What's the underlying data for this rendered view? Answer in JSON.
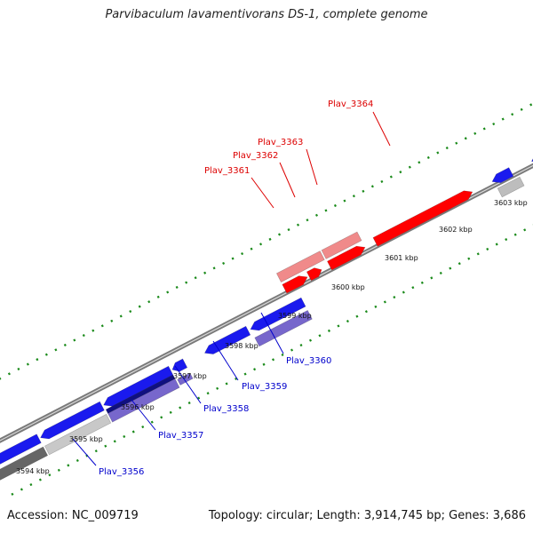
{
  "title": "Parvibaculum lavamentivorans DS-1, complete genome",
  "footer": {
    "accession": "Accession: NC_009719",
    "info": "Topology: circular; Length: 3,914,745 bp; Genes: 3,686"
  },
  "colors": {
    "forward_gene": "#ff0000",
    "forward_gene_light": "#f08a8a",
    "reverse_gene": "#1a1aee",
    "reverse_gene_light": "#7767cc",
    "backbone": "#888888",
    "tick_dots": "#1a8a1a",
    "label_red": "#dd0000",
    "label_blue": "#0000cc"
  },
  "ticks": [
    {
      "label": "3594 kbp"
    },
    {
      "label": "3595 kbp"
    },
    {
      "label": "3596 kbp"
    },
    {
      "label": "3597 kbp"
    },
    {
      "label": "3598 kbp"
    },
    {
      "label": "3599 kbp"
    },
    {
      "label": "3600 kbp"
    },
    {
      "label": "3601 kbp"
    },
    {
      "label": "3602 kbp"
    },
    {
      "label": "3603 kbp"
    }
  ],
  "gene_labels": [
    {
      "text": "Plav_3356",
      "strand": "reverse"
    },
    {
      "text": "Plav_3357",
      "strand": "reverse"
    },
    {
      "text": "Plav_3358",
      "strand": "reverse"
    },
    {
      "text": "Plav_3359",
      "strand": "reverse"
    },
    {
      "text": "Plav_3360",
      "strand": "reverse"
    },
    {
      "text": "Plav_3361",
      "strand": "forward"
    },
    {
      "text": "Plav_3362",
      "strand": "forward"
    },
    {
      "text": "Plav_3363",
      "strand": "forward"
    },
    {
      "text": "Plav_3364",
      "strand": "forward"
    }
  ]
}
